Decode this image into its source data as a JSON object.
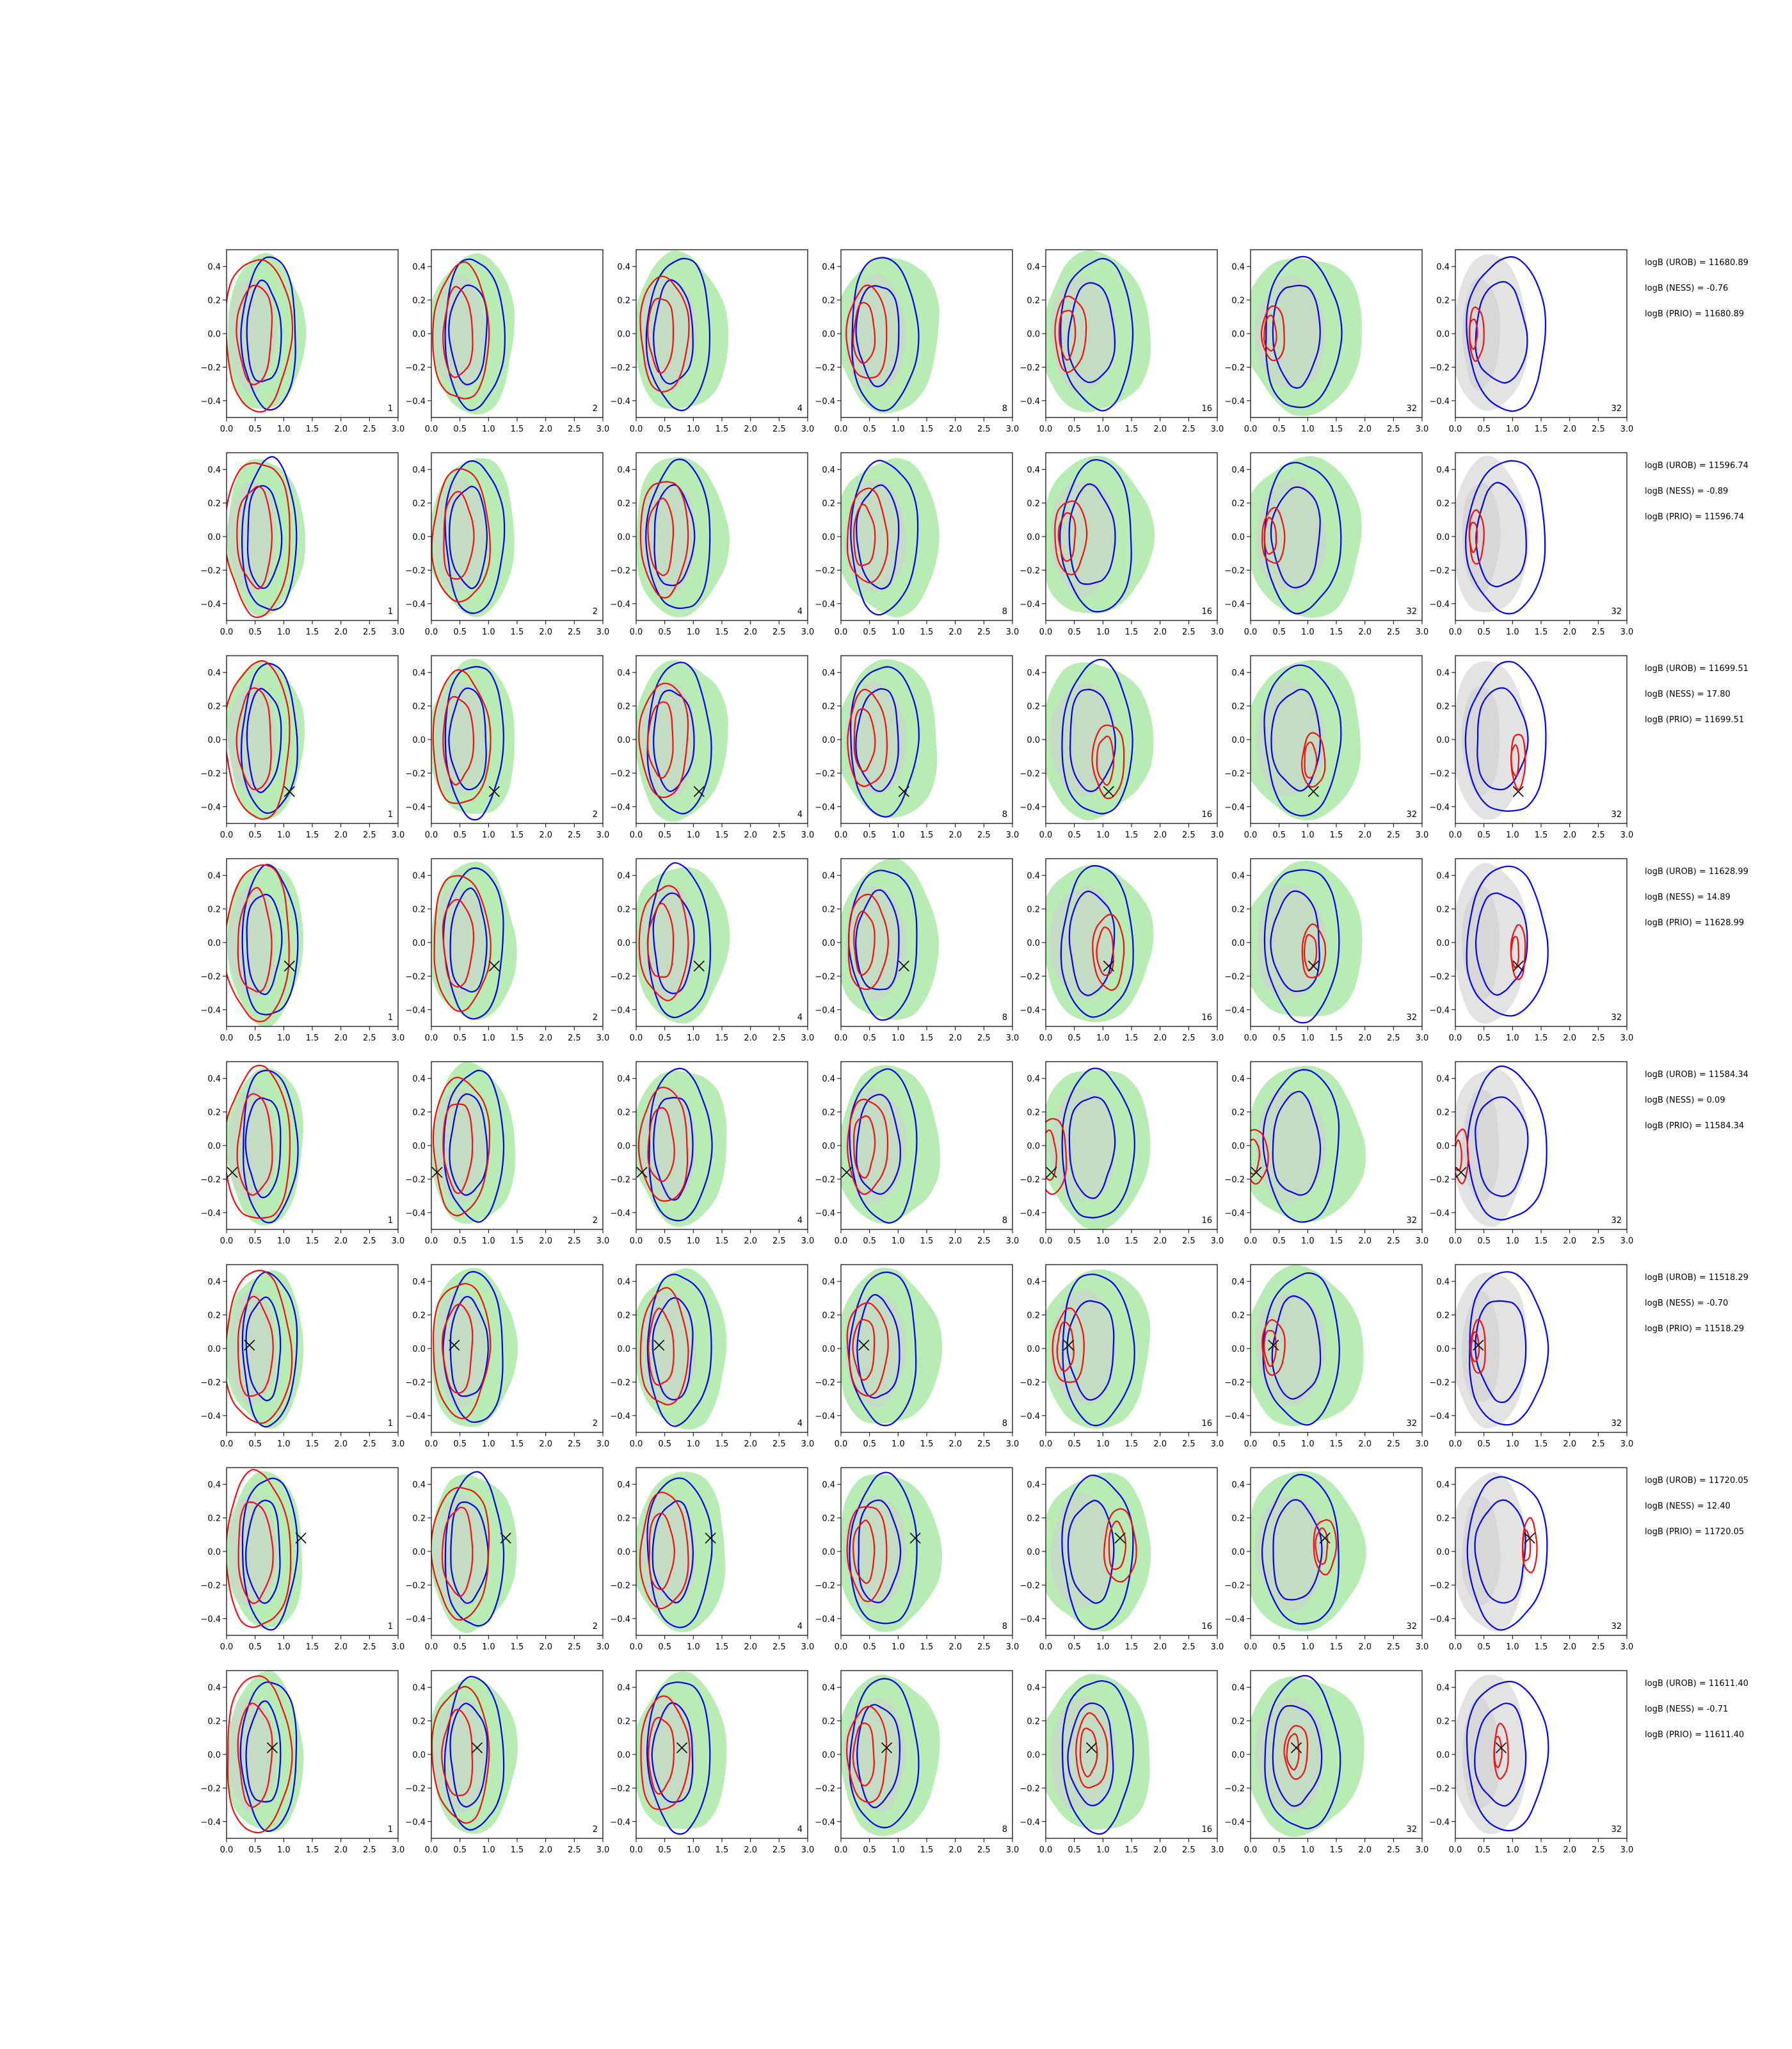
{
  "chart_data": {
    "type": "contour-grid",
    "xlim": [
      0.0,
      3.0
    ],
    "ylim": [
      -0.5,
      0.5
    ],
    "x_ticks": [
      "0.0",
      "0.5",
      "1.0",
      "1.5",
      "2.0",
      "2.5",
      "3.0"
    ],
    "y_ticks": [
      "0.4",
      "0.2",
      "0.0",
      "−0.2",
      "−0.4"
    ],
    "y_tick_values": [
      0.4,
      0.2,
      0.0,
      -0.2,
      -0.4
    ],
    "x_tick_values": [
      0,
      0.5,
      1.0,
      1.5,
      2.0,
      2.5,
      3.0
    ],
    "column_labels": [
      "1",
      "2",
      "4",
      "8",
      "16",
      "32",
      "32"
    ],
    "colors": {
      "green_fill": "#b9ecb5",
      "gray_fill": "#cfcfcf",
      "gray_panel_fill": "#e3e3e3",
      "blue_line": "#0000ee",
      "red_line": "#ee1111",
      "marker": "#000000"
    },
    "rows": [
      {
        "logB": [
          "logB (UROB) = 11680.89",
          "logB (NESS) = -0.76",
          "logB (PRIO) = 11680.89"
        ],
        "marker": null,
        "blue": [
          [
            0.2,
            0.4,
            0.75,
            0.4
          ],
          [
            0.2,
            0.3,
            0.5,
            0.3
          ]
        ],
        "red": [
          [
            0.0,
            0.4,
            0.5,
            0.45
          ],
          [
            0.1,
            0.25,
            0.3,
            0.35
          ]
        ]
      },
      {
        "logB": [
          "logB (UROB) = 11596.74",
          "logB (NESS) = -0.89",
          "logB (PRIO) = 11596.74"
        ],
        "marker": null,
        "blue": [
          [
            0.1,
            0.45,
            0.85,
            0.45
          ],
          [
            0.2,
            0.3,
            0.7,
            0.35
          ]
        ],
        "red": [
          [
            0.1,
            0.45,
            1.0,
            0.45
          ],
          [
            0.2,
            0.3,
            0.55,
            0.3
          ]
        ]
      },
      {
        "logB": [
          "logB (UROB) = 11699.51",
          "logB (NESS) = 17.80",
          "logB (PRIO) = 11699.51"
        ],
        "marker": [
          1.1,
          -0.31
        ],
        "blue": [
          [
            0.0,
            0.4,
            0.65,
            0.45
          ],
          [
            0.15,
            0.3,
            0.45,
            0.3
          ]
        ],
        "red": [
          [
            0.0,
            0.45,
            0.65,
            0.45
          ],
          [
            0.1,
            0.3,
            0.4,
            0.3
          ]
        ]
      },
      {
        "logB": [
          "logB (UROB) = 11628.99",
          "logB (NESS) = 14.89",
          "logB (PRIO) = 11628.99"
        ],
        "marker": [
          1.1,
          -0.14
        ],
        "blue": [
          [
            0.1,
            0.45,
            0.7,
            0.45
          ],
          [
            0.2,
            0.3,
            0.5,
            0.3
          ]
        ],
        "red": [
          [
            0.0,
            0.45,
            0.6,
            0.45
          ],
          [
            0.1,
            0.3,
            0.4,
            0.3
          ]
        ]
      },
      {
        "logB": [
          "logB (UROB) = 11584.34",
          "logB (NESS) = 0.09",
          "logB (PRIO) = 11584.34"
        ],
        "marker": [
          0.1,
          -0.16
        ],
        "blue": [
          [
            0.1,
            0.45,
            0.9,
            0.45
          ],
          [
            0.2,
            0.3,
            0.6,
            0.3
          ]
        ],
        "red": [
          [
            0.0,
            0.45,
            1.1,
            0.45
          ],
          [
            0.1,
            0.3,
            0.7,
            0.3
          ]
        ]
      },
      {
        "logB": [
          "logB (UROB) = 11518.29",
          "logB (NESS) = -0.70",
          "logB (PRIO) = 11518.29"
        ],
        "marker": [
          0.4,
          0.02
        ],
        "blue": [
          [
            0.1,
            0.45,
            0.8,
            0.45
          ],
          [
            0.2,
            0.3,
            0.5,
            0.3
          ]
        ],
        "red": [
          [
            0.0,
            0.45,
            0.95,
            0.45
          ],
          [
            0.1,
            0.3,
            0.5,
            0.3
          ]
        ]
      },
      {
        "logB": [
          "logB (UROB) = 11720.05",
          "logB (NESS) = 12.40",
          "logB (PRIO) = 11720.05"
        ],
        "marker": [
          1.3,
          0.08
        ],
        "blue": [
          [
            0.1,
            0.45,
            0.75,
            0.45
          ],
          [
            0.2,
            0.3,
            0.5,
            0.3
          ]
        ],
        "red": [
          [
            0.0,
            0.45,
            0.85,
            0.45
          ],
          [
            0.1,
            0.3,
            0.5,
            0.3
          ]
        ]
      },
      {
        "logB": [
          "logB (UROB) = 11611.40",
          "logB (NESS) = -0.71",
          "logB (PRIO) = 11611.40"
        ],
        "marker": [
          0.8,
          0.04
        ],
        "blue": [
          [
            0.1,
            0.45,
            0.75,
            0.45
          ],
          [
            0.2,
            0.3,
            0.5,
            0.3
          ]
        ],
        "red": [
          [
            0.0,
            0.45,
            0.75,
            0.45
          ],
          [
            0.1,
            0.3,
            0.4,
            0.3
          ]
        ]
      }
    ]
  }
}
